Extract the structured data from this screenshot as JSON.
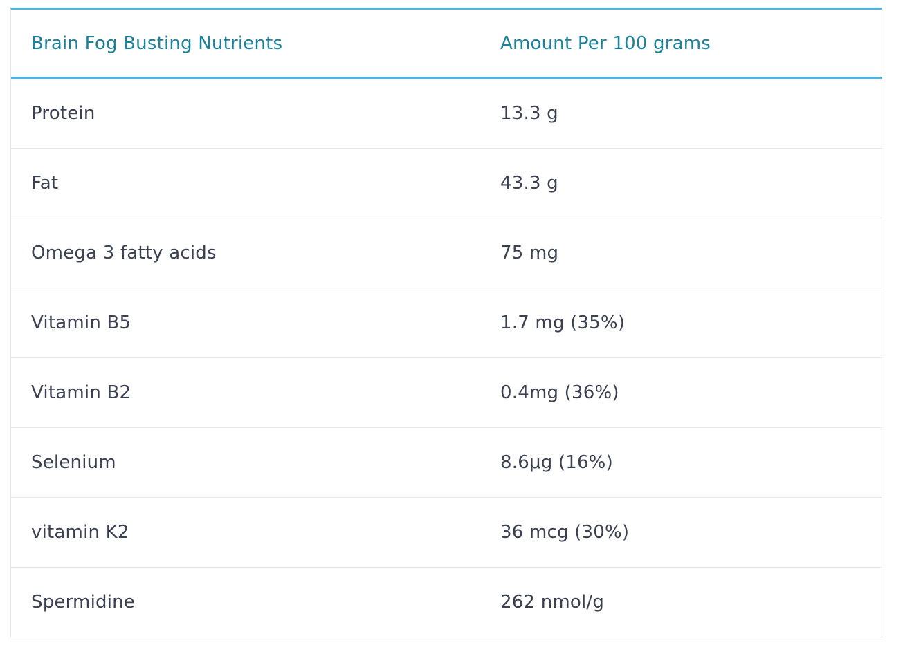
{
  "table": {
    "headers": [
      "Brain Fog Busting Nutrients",
      "Amount Per 100 grams"
    ],
    "rows": [
      [
        "Protein",
        "13.3 g"
      ],
      [
        "Fat",
        "43.3 g"
      ],
      [
        "Omega 3 fatty acids",
        "75 mg"
      ],
      [
        "Vitamin B5",
        "1.7 mg (35%)"
      ],
      [
        "Vitamin B2",
        "0.4mg (36%)"
      ],
      [
        "Selenium",
        "8.6μg (16%)"
      ],
      [
        "vitamin K2",
        "36 mcg (30%)"
      ],
      [
        "Spermidine",
        "262 nmol/g"
      ]
    ]
  },
  "colors": {
    "accent": "#4fb3e0",
    "header_text": "#1d8299",
    "body_text": "#3b4150",
    "row_border": "#e4e6ea"
  }
}
